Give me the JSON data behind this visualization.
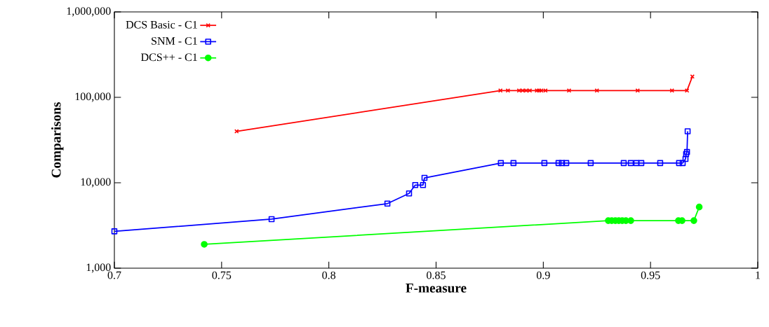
{
  "chart_data": {
    "type": "line",
    "xlabel": "F-measure",
    "ylabel": "Comparisons",
    "log": "y",
    "xlim": [
      0.7,
      1
    ],
    "ylim": [
      1000,
      1000000
    ],
    "xticks": [
      0.7,
      0.75,
      0.8,
      0.85,
      0.9,
      0.95,
      1
    ],
    "yticks": [
      {
        "value": 1000,
        "label": "1,000"
      },
      {
        "value": 10000,
        "label": "10,000"
      },
      {
        "value": 100000,
        "label": "100,000"
      },
      {
        "value": 1000000,
        "label": "1,000,000"
      }
    ],
    "grid": false,
    "legend": "top left",
    "line_style": "solid",
    "series": [
      {
        "name": "DCS Basic - C1",
        "color": "#ff0000",
        "marker": "cross",
        "x": [
          0.757,
          0.88,
          0.8835,
          0.8887,
          0.8904,
          0.892,
          0.8937,
          0.897,
          0.898,
          0.899,
          0.901,
          0.912,
          0.925,
          0.944,
          0.96,
          0.967,
          0.9695
        ],
        "values": [
          40000,
          120000,
          120000,
          120000,
          120000,
          120000,
          120000,
          120000,
          120000,
          120000,
          120000,
          120000,
          120000,
          120000,
          120000,
          120000,
          175000
        ]
      },
      {
        "name": "SNM - C1",
        "color": "#0000ff",
        "marker": "square",
        "x": [
          0.7,
          0.7733,
          0.8273,
          0.8374,
          0.8403,
          0.8439,
          0.8446,
          0.8802,
          0.8861,
          0.9005,
          0.9071,
          0.9087,
          0.9107,
          0.9221,
          0.9375,
          0.9408,
          0.9434,
          0.9457,
          0.9545,
          0.9633,
          0.965,
          0.9663,
          0.9666,
          0.967,
          0.9673
        ],
        "values": [
          2700,
          3750,
          5700,
          7500,
          9400,
          9400,
          11400,
          17000,
          17000,
          17000,
          17000,
          17000,
          17000,
          17000,
          17000,
          17000,
          17000,
          17000,
          17000,
          17000,
          17000,
          19000,
          21700,
          22900,
          40000
        ]
      },
      {
        "name": "DCS++ - C1",
        "color": "#00ff00",
        "marker": "circle",
        "x": [
          0.7419,
          0.9303,
          0.9319,
          0.9336,
          0.9352,
          0.9368,
          0.9385,
          0.9408,
          0.963,
          0.9647,
          0.9702,
          0.9727
        ],
        "values": [
          1900,
          3600,
          3600,
          3600,
          3600,
          3600,
          3600,
          3600,
          3600,
          3600,
          3600,
          5200
        ]
      }
    ]
  }
}
